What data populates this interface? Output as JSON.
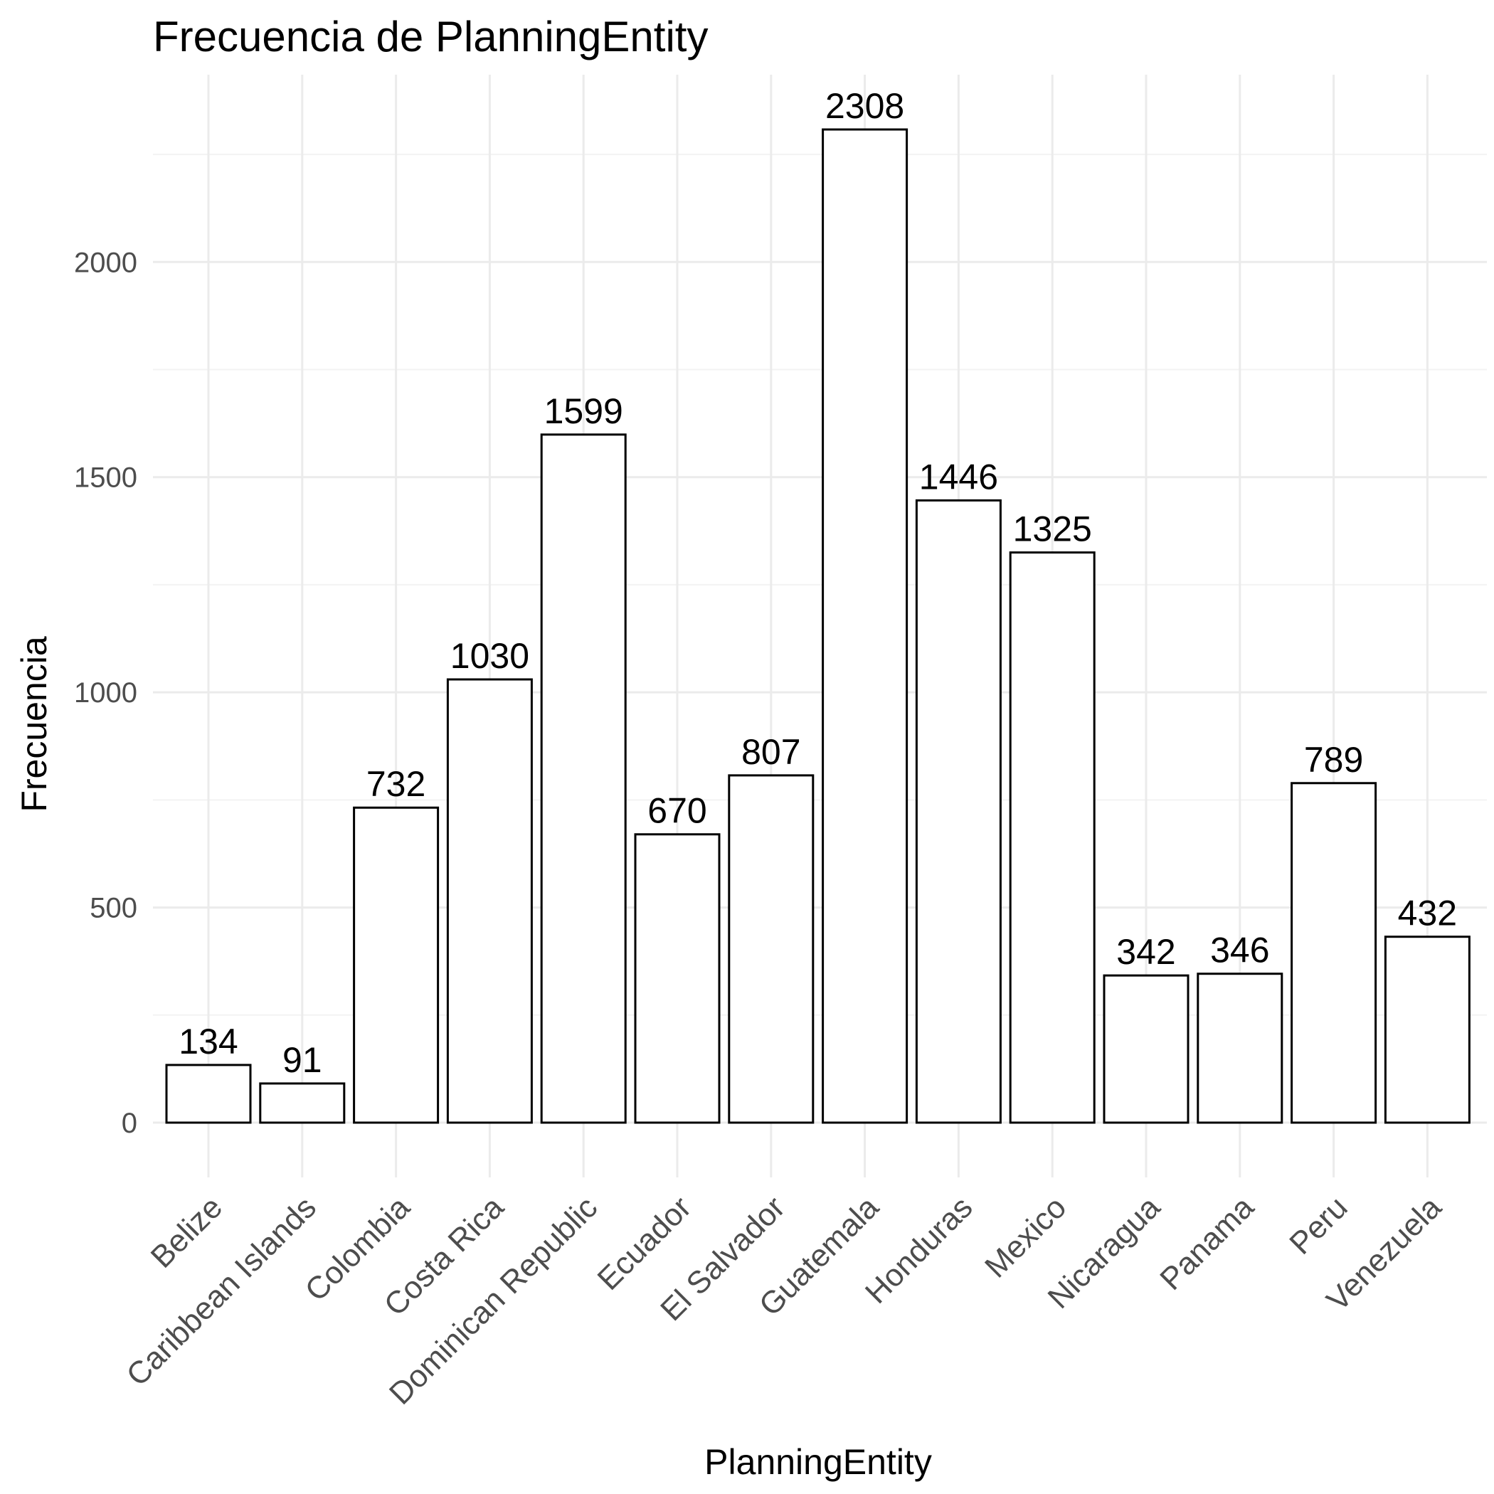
{
  "chart_data": {
    "type": "bar",
    "title": "Frecuencia de PlanningEntity",
    "xlabel": "PlanningEntity",
    "ylabel": "Frecuencia",
    "categories": [
      "Belize",
      "Caribbean Islands",
      "Colombia",
      "Costa Rica",
      "Dominican Republic",
      "Ecuador",
      "El Salvador",
      "Guatemala",
      "Honduras",
      "Mexico",
      "Nicaragua",
      "Panama",
      "Peru",
      "Venezuela"
    ],
    "values": [
      134,
      91,
      732,
      1030,
      1599,
      670,
      807,
      2308,
      1446,
      1325,
      342,
      346,
      789,
      432
    ],
    "data_labels": [
      "134",
      "91",
      "732",
      "1030",
      "1599",
      "670",
      "807",
      "2308",
      "1446",
      "1325",
      "342",
      "346",
      "789",
      "432"
    ],
    "y_ticks": [
      0,
      500,
      1000,
      1500,
      2000
    ],
    "y_tick_labels": [
      "0",
      "500",
      "1000",
      "1500",
      "2000"
    ],
    "ylim": [
      -115.4,
      2423.4
    ],
    "grid": true,
    "legend": "none",
    "bar_fill": "#ffffff",
    "bar_outline": "#000000"
  }
}
